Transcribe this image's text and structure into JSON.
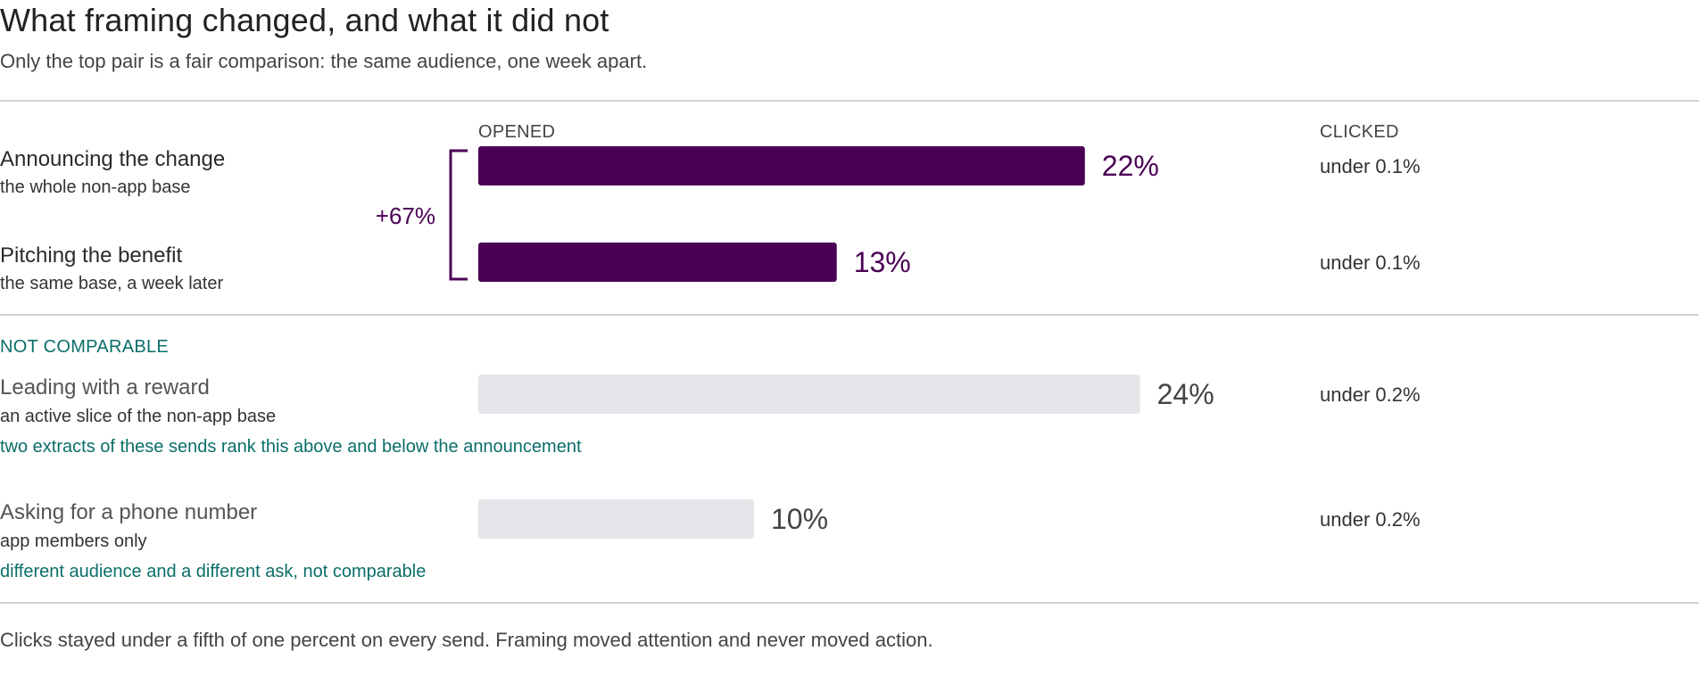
{
  "title": "What framing changed, and what it did not",
  "subtitle": "Only the top pair is a fair comparison: the same audience, one week apart.",
  "columns": {
    "opened": "OPENED",
    "clicked": "CLICKED"
  },
  "section_label": "NOT COMPARABLE",
  "comparison_label": "+67%",
  "footer": "Clicks stayed under a fifth of one percent on every send. Framing moved attention and never moved action.",
  "colors": {
    "highlight": "#4b0055",
    "muted": "#e6e5ea",
    "note": "#0b6e69"
  },
  "rows": [
    {
      "label": "Announcing the change",
      "sublabel": "the whole non-app base",
      "clicked": "under 0.1%",
      "note": ""
    },
    {
      "label": "Pitching the benefit",
      "sublabel": "the same base, a week later",
      "clicked": "under 0.1%",
      "note": ""
    },
    {
      "label": "Leading with a reward",
      "sublabel": "an active slice of the non-app base",
      "clicked": "under 0.2%",
      "note": "two extracts of these sends rank this above and below the announcement"
    },
    {
      "label": "Asking for a phone number",
      "sublabel": "app members only",
      "clicked": "under 0.2%",
      "note": "different audience and a different ask, not comparable"
    }
  ],
  "chart_data": {
    "type": "bar",
    "orientation": "horizontal",
    "categories": [
      "Announcing the change",
      "Pitching the benefit",
      "Leading with a reward",
      "Asking for a phone number"
    ],
    "values": [
      22,
      13,
      24,
      10
    ],
    "data_labels": [
      "22%",
      "13%",
      "24%",
      "10%"
    ],
    "highlighted": [
      true,
      true,
      false,
      false
    ],
    "grid": false
  }
}
